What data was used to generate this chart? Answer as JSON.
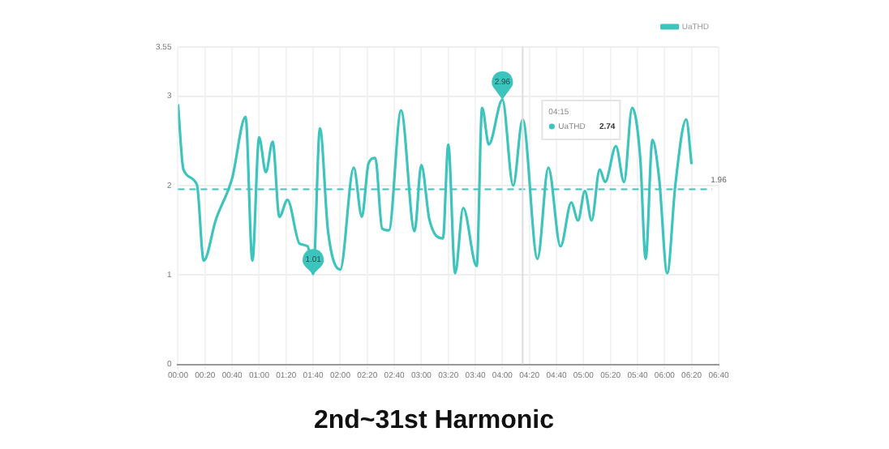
{
  "chart_data": {
    "type": "line",
    "title": "2nd~31st Harmonic",
    "x": [
      0,
      0.067,
      0.233,
      0.317,
      0.467,
      0.667,
      0.833,
      0.917,
      1.0,
      1.083,
      1.167,
      1.25,
      1.35,
      1.5,
      1.6,
      1.667,
      1.75,
      1.85,
      2.0,
      2.167,
      2.267,
      2.35,
      2.433,
      2.517,
      2.6,
      2.75,
      2.917,
      3.0,
      3.1,
      3.267,
      3.333,
      3.417,
      3.517,
      3.683,
      3.75,
      3.833,
      4.0,
      4.133,
      4.25,
      4.433,
      4.567,
      4.717,
      4.85,
      4.933,
      5.017,
      5.1,
      5.2,
      5.267,
      5.4,
      5.5,
      5.6,
      5.7,
      5.767,
      5.85,
      5.933,
      6.033,
      6.133,
      6.267,
      6.333
    ],
    "series": [
      {
        "name": "UaTHD",
        "color": "#3cc4bd",
        "values": [
          2.91,
          2.18,
          2.01,
          1.16,
          1.62,
          2.08,
          2.77,
          1.16,
          2.54,
          2.15,
          2.49,
          1.65,
          1.84,
          1.35,
          1.32,
          1.01,
          2.64,
          1.49,
          1.06,
          2.2,
          1.65,
          2.25,
          2.31,
          1.52,
          1.5,
          2.84,
          1.49,
          2.23,
          1.62,
          1.41,
          2.46,
          1.02,
          1.75,
          1.1,
          2.87,
          2.46,
          2.96,
          2.0,
          2.74,
          1.18,
          2.2,
          1.32,
          1.81,
          1.61,
          1.94,
          1.61,
          2.18,
          2.04,
          2.44,
          2.04,
          2.87,
          2.31,
          1.18,
          2.51,
          2.08,
          1.02,
          2.01,
          2.74,
          2.24
        ]
      }
    ],
    "xlim": [
      0,
      6.667
    ],
    "xticks": [
      {
        "value": 0,
        "label": "00:00"
      },
      {
        "value": 0.333,
        "label": "00:20"
      },
      {
        "value": 0.667,
        "label": "00:40"
      },
      {
        "value": 1,
        "label": "01:00"
      },
      {
        "value": 1.333,
        "label": "01:20"
      },
      {
        "value": 1.667,
        "label": "01:40"
      },
      {
        "value": 2,
        "label": "02:00"
      },
      {
        "value": 2.333,
        "label": "02:20"
      },
      {
        "value": 2.667,
        "label": "02:40"
      },
      {
        "value": 3,
        "label": "03:00"
      },
      {
        "value": 3.333,
        "label": "03:20"
      },
      {
        "value": 3.667,
        "label": "03:40"
      },
      {
        "value": 4,
        "label": "04:00"
      },
      {
        "value": 4.333,
        "label": "04:20"
      },
      {
        "value": 4.667,
        "label": "04:40"
      },
      {
        "value": 5,
        "label": "05:00"
      },
      {
        "value": 5.333,
        "label": "05:20"
      },
      {
        "value": 5.667,
        "label": "05:40"
      },
      {
        "value": 6,
        "label": "06:00"
      },
      {
        "value": 6.333,
        "label": "06:20"
      },
      {
        "value": 6.667,
        "label": "06:40"
      }
    ],
    "ylim": [
      0,
      3.55
    ],
    "yticks": [
      0,
      1,
      2,
      3,
      3.55
    ],
    "ref_lines": [
      {
        "axis": "y",
        "value": 1.96,
        "label": "1.96",
        "color": "#3cc4bd",
        "line_style": "dashed"
      },
      {
        "axis": "x",
        "value": 4.25,
        "color": "#dddddd",
        "line_style": "solid"
      }
    ],
    "annotations": [
      {
        "text": "2.96",
        "x": 4.0,
        "y": 2.96
      },
      {
        "text": "1.01",
        "x": 1.667,
        "y": 1.01
      },
      "04:15",
      "2.74"
    ],
    "grid": true,
    "legend": "top right",
    "marker": "none",
    "line_style": "solid"
  }
}
